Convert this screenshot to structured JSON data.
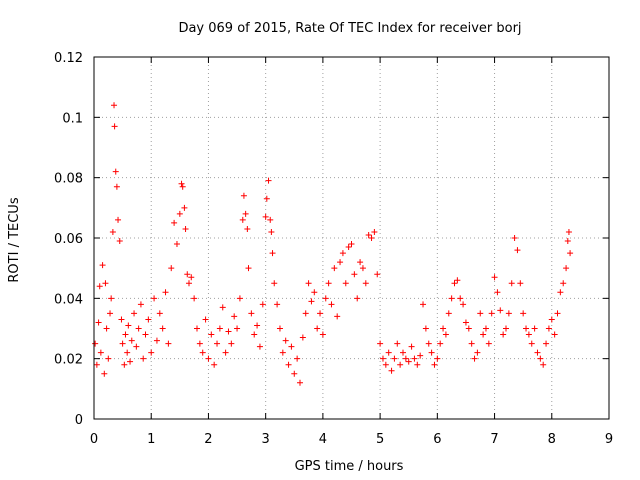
{
  "chart_data": {
    "type": "scatter",
    "title": "Day 069 of 2015, Rate Of TEC Index for receiver borj",
    "xlabel": "GPS time / hours",
    "ylabel": "ROTI / TECUs",
    "xlim": [
      0,
      9
    ],
    "ylim": [
      0,
      0.12
    ],
    "x_ticks": [
      0,
      1,
      2,
      3,
      4,
      5,
      6,
      7,
      8,
      9
    ],
    "x_tick_labels": [
      "0",
      "1",
      "2",
      "3",
      "4",
      "5",
      "6",
      "7",
      "8",
      "9"
    ],
    "y_ticks": [
      0,
      0.02,
      0.04,
      0.06,
      0.08,
      0.1,
      0.12
    ],
    "y_tick_labels": [
      "0",
      "0.02",
      "0.04",
      "0.06",
      "0.08",
      "0.1",
      "0.12"
    ],
    "grid": true,
    "marker": "+",
    "color": "#ff0000",
    "series": [
      {
        "name": "ROTI",
        "x": [
          0.02,
          0.05,
          0.08,
          0.1,
          0.12,
          0.15,
          0.18,
          0.2,
          0.22,
          0.25,
          0.28,
          0.3,
          0.33,
          0.35,
          0.36,
          0.38,
          0.4,
          0.42,
          0.45,
          0.48,
          0.5,
          0.53,
          0.55,
          0.58,
          0.6,
          0.63,
          0.66,
          0.7,
          0.74,
          0.78,
          0.82,
          0.86,
          0.9,
          0.95,
          1.0,
          1.05,
          1.1,
          1.15,
          1.2,
          1.25,
          1.3,
          1.35,
          1.4,
          1.45,
          1.5,
          1.53,
          1.55,
          1.58,
          1.6,
          1.63,
          1.66,
          1.7,
          1.75,
          1.8,
          1.85,
          1.9,
          1.95,
          2.0,
          2.05,
          2.1,
          2.15,
          2.2,
          2.25,
          2.3,
          2.35,
          2.4,
          2.45,
          2.5,
          2.55,
          2.6,
          2.62,
          2.65,
          2.68,
          2.7,
          2.75,
          2.8,
          2.85,
          2.9,
          2.95,
          3.0,
          3.02,
          3.05,
          3.08,
          3.1,
          3.12,
          3.15,
          3.2,
          3.25,
          3.3,
          3.35,
          3.4,
          3.45,
          3.5,
          3.55,
          3.6,
          3.65,
          3.7,
          3.75,
          3.8,
          3.85,
          3.9,
          3.95,
          4.0,
          4.05,
          4.1,
          4.15,
          4.2,
          4.25,
          4.3,
          4.35,
          4.4,
          4.45,
          4.5,
          4.55,
          4.6,
          4.65,
          4.7,
          4.75,
          4.8,
          4.85,
          4.9,
          4.95,
          5.0,
          5.05,
          5.1,
          5.15,
          5.2,
          5.25,
          5.3,
          5.35,
          5.4,
          5.45,
          5.5,
          5.55,
          5.6,
          5.65,
          5.7,
          5.75,
          5.8,
          5.85,
          5.9,
          5.95,
          6.0,
          6.05,
          6.1,
          6.15,
          6.2,
          6.25,
          6.3,
          6.35,
          6.4,
          6.45,
          6.5,
          6.55,
          6.6,
          6.65,
          6.7,
          6.75,
          6.8,
          6.85,
          6.9,
          6.95,
          7.0,
          7.05,
          7.1,
          7.15,
          7.2,
          7.25,
          7.3,
          7.35,
          7.4,
          7.45,
          7.5,
          7.55,
          7.6,
          7.65,
          7.7,
          7.75,
          7.8,
          7.85,
          7.9,
          7.95,
          8.0,
          8.05,
          8.1,
          8.15,
          8.2,
          8.25,
          8.28,
          8.3,
          8.32
        ],
        "y": [
          0.025,
          0.018,
          0.032,
          0.044,
          0.022,
          0.051,
          0.015,
          0.045,
          0.03,
          0.02,
          0.035,
          0.04,
          0.062,
          0.104,
          0.097,
          0.082,
          0.077,
          0.066,
          0.059,
          0.033,
          0.025,
          0.018,
          0.028,
          0.022,
          0.031,
          0.019,
          0.026,
          0.035,
          0.024,
          0.03,
          0.038,
          0.02,
          0.028,
          0.033,
          0.022,
          0.04,
          0.026,
          0.035,
          0.03,
          0.042,
          0.025,
          0.05,
          0.065,
          0.058,
          0.068,
          0.078,
          0.077,
          0.07,
          0.063,
          0.048,
          0.045,
          0.047,
          0.04,
          0.03,
          0.025,
          0.022,
          0.033,
          0.02,
          0.028,
          0.018,
          0.025,
          0.03,
          0.037,
          0.022,
          0.029,
          0.025,
          0.034,
          0.03,
          0.04,
          0.066,
          0.074,
          0.068,
          0.063,
          0.05,
          0.035,
          0.028,
          0.031,
          0.024,
          0.038,
          0.067,
          0.073,
          0.079,
          0.066,
          0.062,
          0.055,
          0.045,
          0.038,
          0.03,
          0.022,
          0.026,
          0.018,
          0.024,
          0.015,
          0.02,
          0.012,
          0.027,
          0.035,
          0.045,
          0.039,
          0.042,
          0.03,
          0.035,
          0.028,
          0.04,
          0.045,
          0.038,
          0.05,
          0.034,
          0.052,
          0.055,
          0.045,
          0.057,
          0.058,
          0.048,
          0.04,
          0.052,
          0.05,
          0.045,
          0.061,
          0.06,
          0.062,
          0.048,
          0.025,
          0.02,
          0.018,
          0.022,
          0.016,
          0.02,
          0.025,
          0.018,
          0.022,
          0.02,
          0.019,
          0.024,
          0.02,
          0.018,
          0.021,
          0.038,
          0.03,
          0.025,
          0.022,
          0.018,
          0.02,
          0.025,
          0.03,
          0.028,
          0.035,
          0.04,
          0.045,
          0.046,
          0.04,
          0.038,
          0.032,
          0.03,
          0.025,
          0.02,
          0.022,
          0.035,
          0.028,
          0.03,
          0.025,
          0.035,
          0.047,
          0.042,
          0.036,
          0.028,
          0.03,
          0.035,
          0.045,
          0.06,
          0.056,
          0.045,
          0.035,
          0.03,
          0.028,
          0.025,
          0.03,
          0.022,
          0.02,
          0.018,
          0.025,
          0.03,
          0.033,
          0.028,
          0.035,
          0.042,
          0.045,
          0.05,
          0.059,
          0.062,
          0.055
        ]
      }
    ]
  }
}
